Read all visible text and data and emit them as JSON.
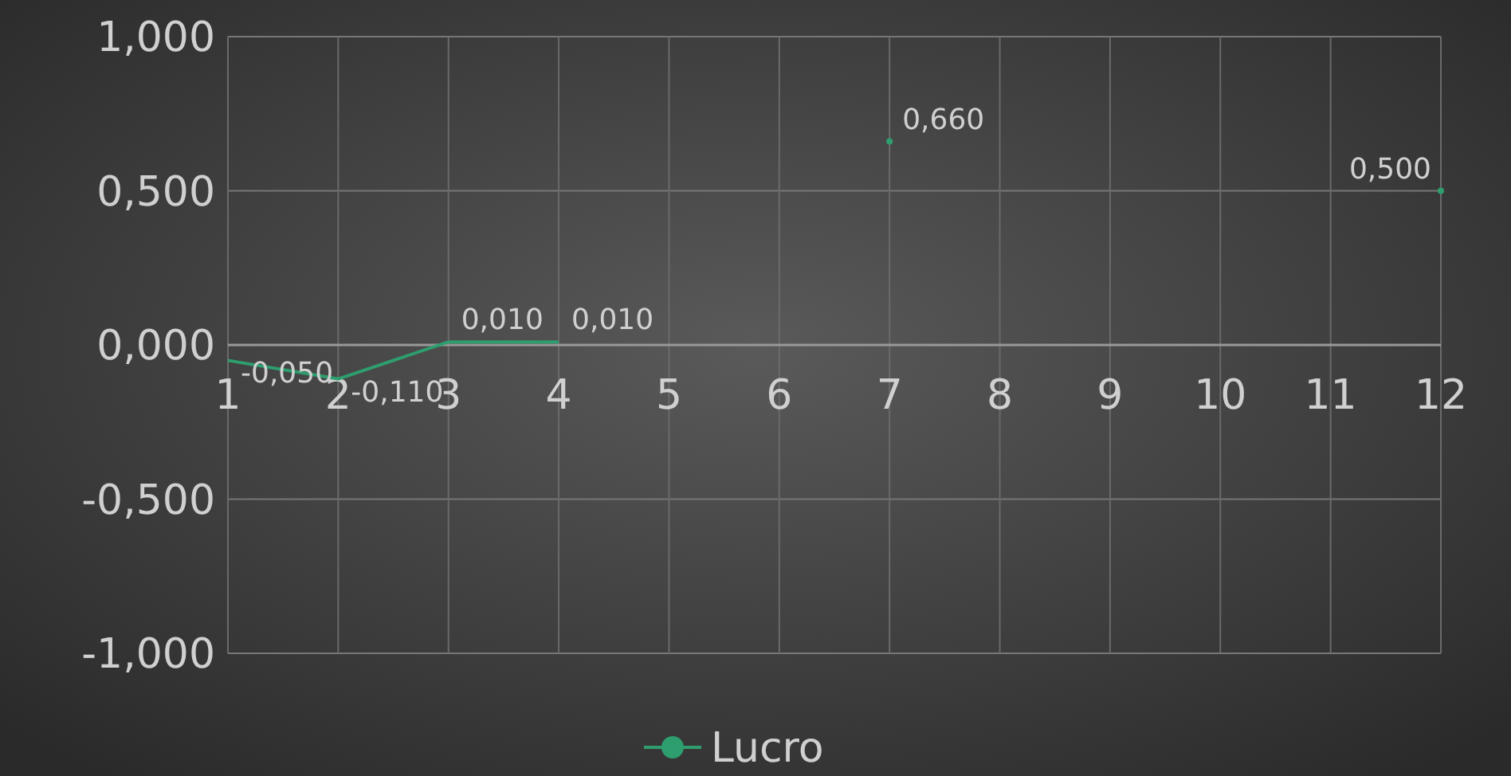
{
  "chart_data": {
    "type": "line",
    "x": [
      1,
      2,
      3,
      4,
      5,
      6,
      7,
      8,
      9,
      10,
      11,
      12
    ],
    "series": [
      {
        "name": "Lucro",
        "color": "#2e9e6e",
        "values": [
          -0.05,
          -0.11,
          0.01,
          0.01,
          null,
          null,
          0.66,
          null,
          null,
          null,
          null,
          0.5
        ]
      }
    ],
    "value_labels": [
      "-0,050",
      "-0,110",
      "0,010",
      "0,010",
      null,
      null,
      "0,660",
      null,
      null,
      null,
      null,
      "0,500"
    ],
    "xlim": [
      1,
      12
    ],
    "xticks": [
      1,
      2,
      3,
      4,
      5,
      6,
      7,
      8,
      9,
      10,
      11,
      12
    ],
    "ylim": [
      -1,
      1
    ],
    "yticks": [
      {
        "value": -1,
        "label": "-1,000"
      },
      {
        "value": -0.5,
        "label": "-0,500"
      },
      {
        "value": 0,
        "label": "0,000"
      },
      {
        "value": 0.5,
        "label": "0,500"
      },
      {
        "value": 1,
        "label": "1,000"
      }
    ],
    "grid": true,
    "legend": "bottom",
    "marker": "none"
  }
}
